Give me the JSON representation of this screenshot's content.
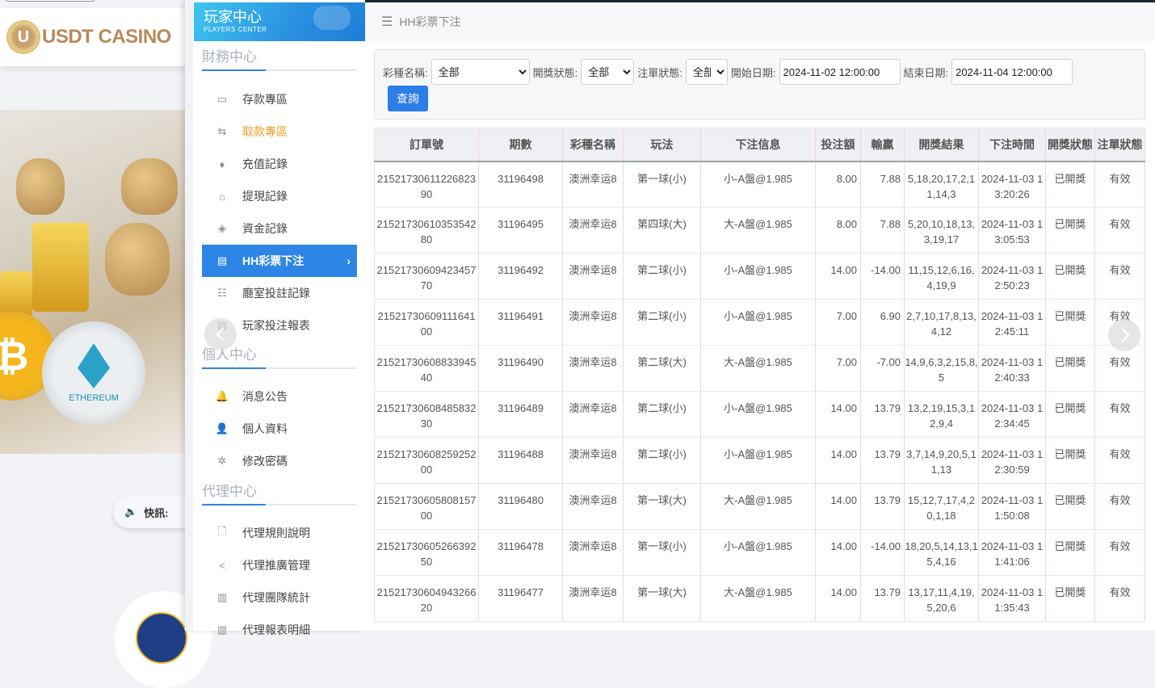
{
  "site": {
    "logo_text": "USDT CASINO",
    "news_label": "快訊:",
    "coin_label": "ETHEREUM"
  },
  "panel": {
    "title": "玩家中心",
    "subtitle": "PLAYERS CENTER"
  },
  "breadcrumb": {
    "icon": "menu-icon",
    "label": "HH彩票下注"
  },
  "sidebar": {
    "sections": [
      {
        "title": "財務中心",
        "items": [
          {
            "label": "存款專區",
            "icon": "deposit-icon",
            "glyph": "▭"
          },
          {
            "label": "取款專區",
            "icon": "withdraw-icon",
            "glyph": "⇆",
            "highlight": "#f39a1e"
          },
          {
            "label": "充值記錄",
            "icon": "money-bag-icon",
            "glyph": "♦"
          },
          {
            "label": "提現記錄",
            "icon": "withdraw-record-icon",
            "glyph": "⌂"
          },
          {
            "label": "資金記錄",
            "icon": "funds-icon",
            "glyph": "◈"
          },
          {
            "label": "HH彩票下注",
            "icon": "lottery-icon",
            "glyph": "▤",
            "active": true
          },
          {
            "label": "廳室投註記錄",
            "icon": "list-icon",
            "glyph": "☷"
          },
          {
            "label": "玩家投注報表",
            "icon": "chart-icon",
            "glyph": "▧"
          }
        ]
      },
      {
        "title": "個人中心",
        "items": [
          {
            "label": "消息公告",
            "icon": "bell-icon",
            "glyph": "🔔"
          },
          {
            "label": "個人資料",
            "icon": "user-icon",
            "glyph": "👤"
          },
          {
            "label": "修改密碼",
            "icon": "gear-icon",
            "glyph": "✲"
          }
        ]
      },
      {
        "title": "代理中心",
        "items": [
          {
            "label": "代理規則說明",
            "icon": "document-icon",
            "glyph": "🗋"
          },
          {
            "label": "代理推廣管理",
            "icon": "share-icon",
            "glyph": "<"
          },
          {
            "label": "代理團隊統計",
            "icon": "book-icon",
            "glyph": "▥"
          },
          {
            "label": "代理報表明細",
            "icon": "report-icon",
            "glyph": "▥"
          }
        ]
      }
    ]
  },
  "filter": {
    "lottery_label": "彩種名稱:",
    "lottery_value": "全部",
    "draw_status_label": "開獎狀態:",
    "draw_status_value": "全部",
    "order_status_label": "注單狀態:",
    "order_status_value": "全部",
    "start_label": "開始日期:",
    "start_value": "2024-11-02 12:00:00",
    "end_label": "結束日期:",
    "end_value": "2024-11-04 12:00:00",
    "query_button": "查詢"
  },
  "table": {
    "columns": [
      "訂單號",
      "期數",
      "彩種名稱",
      "玩法",
      "下注信息",
      "投注額",
      "輸贏",
      "開獎結果",
      "下注時間",
      "開獎狀態",
      "注單狀態"
    ],
    "rows": [
      [
        "2152173061122682390",
        "31196498",
        "澳洲幸运8",
        "第一球(小)",
        "小-A盤@1.985",
        "8.00",
        "7.88",
        "5,18,20,17,2,11,14,3",
        "2024-11-03 13:20:26",
        "已開獎",
        "有效"
      ],
      [
        "2152173061035354280",
        "31196495",
        "澳洲幸运8",
        "第四球(大)",
        "大-A盤@1.985",
        "8.00",
        "7.88",
        "5,20,10,18,13,3,19,17",
        "2024-11-03 13:05:53",
        "已開獎",
        "有效"
      ],
      [
        "2152173060942345770",
        "31196492",
        "澳洲幸运8",
        "第二球(小)",
        "小-A盤@1.985",
        "14.00",
        "-14.00",
        "11,15,12,6,16,4,19,9",
        "2024-11-03 12:50:23",
        "已開獎",
        "有效"
      ],
      [
        "2152173060911164100",
        "31196491",
        "澳洲幸运8",
        "第二球(小)",
        "小-A盤@1.985",
        "7.00",
        "6.90",
        "2,7,10,17,8,13,4,12",
        "2024-11-03 12:45:11",
        "已開獎",
        "有效"
      ],
      [
        "2152173060883394540",
        "31196490",
        "澳洲幸运8",
        "第二球(大)",
        "大-A盤@1.985",
        "7.00",
        "-7.00",
        "14,9,6,3,2,15,8,5",
        "2024-11-03 12:40:33",
        "已開獎",
        "有效"
      ],
      [
        "2152173060848583230",
        "31196489",
        "澳洲幸运8",
        "第二球(小)",
        "小-A盤@1.985",
        "14.00",
        "13.79",
        "13,2,19,15,3,12,9,4",
        "2024-11-03 12:34:45",
        "已開獎",
        "有效"
      ],
      [
        "2152173060825925200",
        "31196488",
        "澳洲幸运8",
        "第二球(小)",
        "小-A盤@1.985",
        "14.00",
        "13.79",
        "3,7,14,9,20,5,11,13",
        "2024-11-03 12:30:59",
        "已開獎",
        "有效"
      ],
      [
        "2152173060580815700",
        "31196480",
        "澳洲幸运8",
        "第一球(大)",
        "大-A盤@1.985",
        "14.00",
        "13.79",
        "15,12,7,17,4,20,1,18",
        "2024-11-03 11:50:08",
        "已開獎",
        "有效"
      ],
      [
        "2152173060526639250",
        "31196478",
        "澳洲幸运8",
        "第一球(小)",
        "小-A盤@1.985",
        "14.00",
        "-14.00",
        "18,20,5,14,13,15,4,16",
        "2024-11-03 11:41:06",
        "已開獎",
        "有效"
      ],
      [
        "2152173060494326620",
        "31196477",
        "澳洲幸运8",
        "第一球(大)",
        "大-A盤@1.985",
        "14.00",
        "13.79",
        "13,17,11,4,19,5,20,6",
        "2024-11-03 11:35:43",
        "已開獎",
        "有效"
      ]
    ]
  },
  "colors": {
    "accent": "#2d86e6",
    "button": "#2b7de9",
    "highlight": "#f39a1e"
  }
}
